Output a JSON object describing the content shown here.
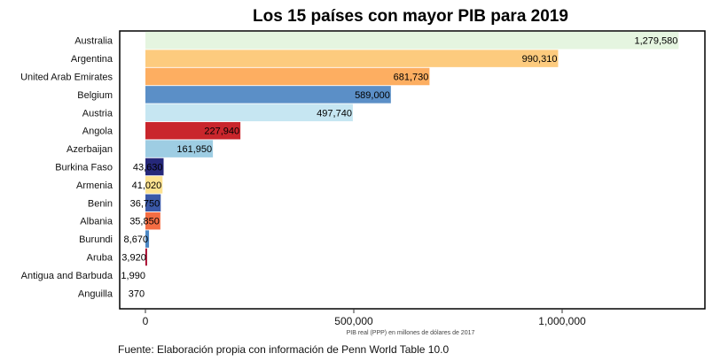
{
  "chart_data": {
    "type": "bar",
    "orientation": "horizontal",
    "title": "Los 15 países con mayor PIB para 2019",
    "xlabel": "PIB real (PPP) en millones de dólares de 2017",
    "ylabel": "",
    "source": "Fuente: Elaboración propia con información de Penn World Table 10.0",
    "xlim": [
      0,
      1350000
    ],
    "xticks": [
      0,
      500000,
      1000000
    ],
    "xtick_labels": [
      "0",
      "500,000",
      "1,000,000"
    ],
    "grid": false,
    "categories": [
      "Australia",
      "Argentina",
      "United Arab Emirates",
      "Belgium",
      "Austria",
      "Angola",
      "Azerbaijan",
      "Burkina Faso",
      "Armenia",
      "Benin",
      "Albania",
      "Burundi",
      "Aruba",
      "Antigua and Barbuda",
      "Anguilla"
    ],
    "values": [
      1279580,
      990310,
      681730,
      589000,
      497740,
      227940,
      161950,
      43630,
      41020,
      36750,
      35850,
      8670,
      3920,
      1990,
      370
    ],
    "value_labels": [
      "1,279,580",
      "990,310",
      "681,730",
      "589,000",
      "497,740",
      "227,940",
      "161,950",
      "43,630",
      "41,020",
      "36,750",
      "35,850",
      "8,670",
      "3,920",
      "1,990",
      "370"
    ],
    "colors": [
      "#e5f5e0",
      "#fdcb7e",
      "#fdae61",
      "#5b8fc7",
      "#c6e6f2",
      "#c9262c",
      "#9ecde3",
      "#26287a",
      "#fee391",
      "#3a58a7",
      "#f46d43",
      "#4b87c4",
      "#a50026",
      "#ffffff",
      "#ffffff"
    ]
  }
}
